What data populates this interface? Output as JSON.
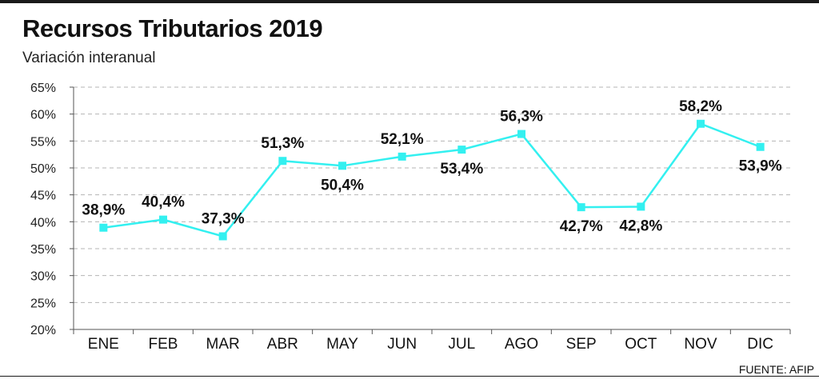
{
  "header": {
    "title": "Recursos Tributarios 2019",
    "subtitle": "Variación interanual"
  },
  "footer": {
    "source": "FUENTE: AFIP"
  },
  "colors": {
    "line": "#33f0f0",
    "marker": "#33f0f0",
    "grid": "#b5b5b5",
    "axis": "#555555"
  },
  "chart_data": {
    "type": "line",
    "title": "Recursos Tributarios 2019",
    "subtitle": "Variación interanual",
    "xlabel": "",
    "ylabel": "",
    "categories": [
      "ENE",
      "FEB",
      "MAR",
      "ABR",
      "MAY",
      "JUN",
      "JUL",
      "AGO",
      "SEP",
      "OCT",
      "NOV",
      "DIC"
    ],
    "series": [
      {
        "values": [
          38.9,
          40.4,
          37.3,
          51.3,
          50.4,
          52.1,
          53.4,
          56.3,
          42.7,
          42.8,
          58.2,
          53.9
        ],
        "labels": [
          "38,9%",
          "40,4%",
          "37,3%",
          "51,3%",
          "50,4%",
          "52,1%",
          "53,4%",
          "56,3%",
          "42,7%",
          "42,8%",
          "58,2%",
          "53,9%"
        ],
        "label_positions": [
          "above",
          "above",
          "above",
          "above",
          "below",
          "above",
          "below",
          "above",
          "below",
          "below",
          "above",
          "below"
        ]
      }
    ],
    "ylim": [
      20,
      65
    ],
    "yticks": [
      20,
      25,
      30,
      35,
      40,
      45,
      50,
      55,
      60,
      65
    ],
    "ytick_labels": [
      "20%",
      "25%",
      "30%",
      "35%",
      "40%",
      "45%",
      "50%",
      "55%",
      "60%",
      "65%"
    ],
    "grid": true,
    "grid_style": "dashed",
    "legend": "none",
    "source": "FUENTE: AFIP"
  }
}
